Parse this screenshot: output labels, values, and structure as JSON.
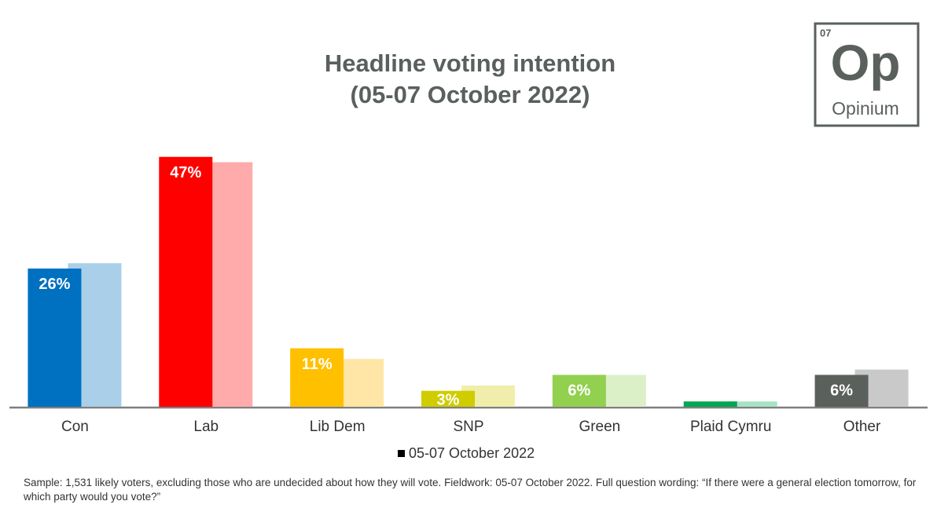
{
  "chart_data": {
    "type": "bar",
    "title": "Headline voting intention",
    "subtitle": "(05-07 October 2022)",
    "categories": [
      "Con",
      "Lab",
      "Lib Dem",
      "SNP",
      "Green",
      "Plaid Cymru",
      "Other"
    ],
    "series": [
      {
        "name": "05-07 October 2022",
        "color": "#000000",
        "colors": [
          "#0070c0",
          "#ff0000",
          "#ffc000",
          "#cfcc00",
          "#92d050",
          "#00a651",
          "#5a605c"
        ],
        "values": [
          26,
          47,
          11,
          3,
          6,
          1,
          6
        ],
        "value_labels": [
          "26%",
          "47%",
          "11%",
          "3%",
          "6%",
          null,
          "6%"
        ]
      },
      {
        "colors": [
          "#a9cfe9",
          "#ffabab",
          "#ffe6a6",
          "#f0eeaa",
          "#dcf0c8",
          "#a6e3c5",
          "#c9c9c9"
        ],
        "values": [
          27,
          46,
          9,
          4,
          6,
          1,
          7
        ]
      }
    ],
    "ylim": [
      0,
      48
    ],
    "logo": {
      "number": "07",
      "symbol": "Op",
      "name": "Opinium"
    },
    "footnote": "Sample: 1,531  likely voters, excluding those who are undecided about how they will vote. Fieldwork: 05-07 October 2022. Full question wording: “If there were a general election tomorrow, for which party would you vote?”"
  }
}
